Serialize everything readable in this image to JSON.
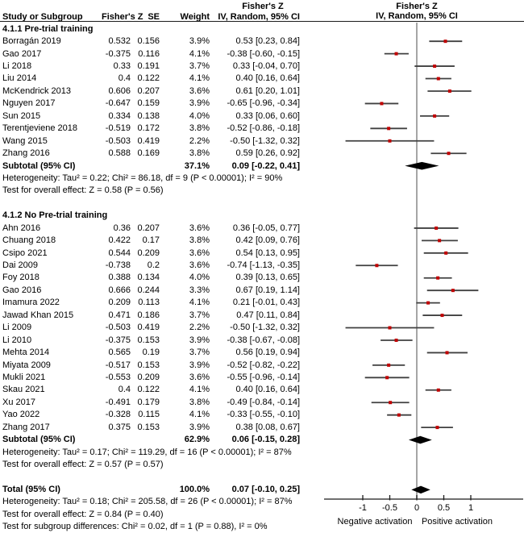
{
  "header": {
    "study_col": "Study or Subgroup",
    "fz_col": "Fisher's Z",
    "se_col": "SE",
    "weight_col": "Weight",
    "ci_col_top": "Fisher's Z",
    "ci_col_bottom": "IV, Random, 95% CI",
    "plot_col_top": "Fisher's Z",
    "plot_col_bottom": "IV, Random, 95% CI"
  },
  "axis": {
    "negative_label": "Negative activation",
    "positive_label": "Positive activation"
  },
  "colors": {
    "marker": "#c00000",
    "ci_line": "#404040",
    "diamond": "#000000",
    "zero_line": "#7f7f7f",
    "axis": "#1a1a1a"
  },
  "chart_data": {
    "type": "forest",
    "effect_measure": "Fisher's Z",
    "model": "IV, Random, 95% CI",
    "x_ticks": [
      -1,
      -0.5,
      0,
      0.5,
      1
    ],
    "x_tick_labels": [
      "-1",
      "-0.5",
      "0",
      "0.5",
      "1"
    ],
    "xlim": [
      -1.7,
      1.95
    ],
    "groups": [
      {
        "title": "4.1.1 Pre-trial training",
        "studies": [
          {
            "name": "Borragán 2019",
            "fz": "0.532",
            "se": "0.156",
            "weight": "3.9%",
            "ci": "0.53 [0.23, 0.84]",
            "est": 0.53,
            "lo": 0.23,
            "hi": 0.84
          },
          {
            "name": "Gao 2017",
            "fz": "-0.375",
            "se": "0.116",
            "weight": "4.1%",
            "ci": "-0.38 [-0.60, -0.15]",
            "est": -0.38,
            "lo": -0.6,
            "hi": -0.15
          },
          {
            "name": "Li 2018",
            "fz": "0.33",
            "se": "0.191",
            "weight": "3.7%",
            "ci": "0.33 [-0.04, 0.70]",
            "est": 0.33,
            "lo": -0.04,
            "hi": 0.7
          },
          {
            "name": "Liu 2014",
            "fz": "0.4",
            "se": "0.122",
            "weight": "4.1%",
            "ci": "0.40 [0.16, 0.64]",
            "est": 0.4,
            "lo": 0.16,
            "hi": 0.64
          },
          {
            "name": "McKendrick 2013",
            "fz": "0.606",
            "se": "0.207",
            "weight": "3.6%",
            "ci": "0.61 [0.20, 1.01]",
            "est": 0.61,
            "lo": 0.2,
            "hi": 1.01
          },
          {
            "name": "Nguyen 2017",
            "fz": "-0.647",
            "se": "0.159",
            "weight": "3.9%",
            "ci": "-0.65 [-0.96, -0.34]",
            "est": -0.65,
            "lo": -0.96,
            "hi": -0.34
          },
          {
            "name": "Sun 2015",
            "fz": "0.334",
            "se": "0.138",
            "weight": "4.0%",
            "ci": "0.33 [0.06, 0.60]",
            "est": 0.33,
            "lo": 0.06,
            "hi": 0.6
          },
          {
            "name": "Terentjeviene 2018",
            "fz": "-0.519",
            "se": "0.172",
            "weight": "3.8%",
            "ci": "-0.52 [-0.86, -0.18]",
            "est": -0.52,
            "lo": -0.86,
            "hi": -0.18
          },
          {
            "name": "Wang 2015",
            "fz": "-0.503",
            "se": "0.419",
            "weight": "2.2%",
            "ci": "-0.50 [-1.32, 0.32]",
            "est": -0.5,
            "lo": -1.32,
            "hi": 0.32
          },
          {
            "name": "Zhang 2016",
            "fz": "0.588",
            "se": "0.169",
            "weight": "3.8%",
            "ci": "0.59 [0.26, 0.92]",
            "est": 0.59,
            "lo": 0.26,
            "hi": 0.92
          }
        ],
        "subtotal": {
          "label": "Subtotal (95% CI)",
          "weight": "37.1%",
          "ci": "0.09 [-0.22, 0.41]",
          "est": 0.09,
          "lo": -0.22,
          "hi": 0.41
        },
        "heterogeneity": "Heterogeneity: Tau² = 0.22; Chi² = 86.18, df = 9 (P < 0.00001); I² = 90%",
        "overall_effect": "Test for overall effect: Z = 0.58 (P = 0.56)"
      },
      {
        "title": "4.1.2 No Pre-trial training",
        "studies": [
          {
            "name": "Ahn 2016",
            "fz": "0.36",
            "se": "0.207",
            "weight": "3.6%",
            "ci": "0.36 [-0.05, 0.77]",
            "est": 0.36,
            "lo": -0.05,
            "hi": 0.77
          },
          {
            "name": "Chuang 2018",
            "fz": "0.422",
            "se": "0.17",
            "weight": "3.8%",
            "ci": "0.42 [0.09, 0.76]",
            "est": 0.42,
            "lo": 0.09,
            "hi": 0.76
          },
          {
            "name": "Csipo 2021",
            "fz": "0.544",
            "se": "0.209",
            "weight": "3.6%",
            "ci": "0.54 [0.13, 0.95]",
            "est": 0.54,
            "lo": 0.13,
            "hi": 0.95
          },
          {
            "name": "Dai 2009",
            "fz": "-0.738",
            "se": "0.2",
            "weight": "3.6%",
            "ci": "-0.74 [-1.13, -0.35]",
            "est": -0.74,
            "lo": -1.13,
            "hi": -0.35
          },
          {
            "name": "Foy 2018",
            "fz": "0.388",
            "se": "0.134",
            "weight": "4.0%",
            "ci": "0.39 [0.13, 0.65]",
            "est": 0.39,
            "lo": 0.13,
            "hi": 0.65
          },
          {
            "name": "Gao 2016",
            "fz": "0.666",
            "se": "0.244",
            "weight": "3.3%",
            "ci": "0.67 [0.19, 1.14]",
            "est": 0.67,
            "lo": 0.19,
            "hi": 1.14
          },
          {
            "name": "Imamura 2022",
            "fz": "0.209",
            "se": "0.113",
            "weight": "4.1%",
            "ci": "0.21 [-0.01, 0.43]",
            "est": 0.21,
            "lo": -0.01,
            "hi": 0.43
          },
          {
            "name": "Jawad Khan 2015",
            "fz": "0.471",
            "se": "0.186",
            "weight": "3.7%",
            "ci": "0.47 [0.11, 0.84]",
            "est": 0.47,
            "lo": 0.11,
            "hi": 0.84
          },
          {
            "name": "Li 2009",
            "fz": "-0.503",
            "se": "0.419",
            "weight": "2.2%",
            "ci": "-0.50 [-1.32, 0.32]",
            "est": -0.5,
            "lo": -1.32,
            "hi": 0.32
          },
          {
            "name": "Li 2010",
            "fz": "-0.375",
            "se": "0.153",
            "weight": "3.9%",
            "ci": "-0.38 [-0.67, -0.08]",
            "est": -0.38,
            "lo": -0.67,
            "hi": -0.08
          },
          {
            "name": "Mehta 2014",
            "fz": "0.565",
            "se": "0.19",
            "weight": "3.7%",
            "ci": "0.56 [0.19, 0.94]",
            "est": 0.56,
            "lo": 0.19,
            "hi": 0.94
          },
          {
            "name": "Miyata 2009",
            "fz": "-0.517",
            "se": "0.153",
            "weight": "3.9%",
            "ci": "-0.52 [-0.82, -0.22]",
            "est": -0.52,
            "lo": -0.82,
            "hi": -0.22
          },
          {
            "name": "Mukli 2021",
            "fz": "-0.553",
            "se": "0.209",
            "weight": "3.6%",
            "ci": "-0.55 [-0.96, -0.14]",
            "est": -0.55,
            "lo": -0.96,
            "hi": -0.14
          },
          {
            "name": "Skau 2021",
            "fz": "0.4",
            "se": "0.122",
            "weight": "4.1%",
            "ci": "0.40 [0.16, 0.64]",
            "est": 0.4,
            "lo": 0.16,
            "hi": 0.64
          },
          {
            "name": "Xu 2017",
            "fz": "-0.491",
            "se": "0.179",
            "weight": "3.8%",
            "ci": "-0.49 [-0.84, -0.14]",
            "est": -0.49,
            "lo": -0.84,
            "hi": -0.14
          },
          {
            "name": "Yao 2022",
            "fz": "-0.328",
            "se": "0.115",
            "weight": "4.1%",
            "ci": "-0.33 [-0.55, -0.10]",
            "est": -0.33,
            "lo": -0.55,
            "hi": -0.1
          },
          {
            "name": "Zhang 2017",
            "fz": "0.375",
            "se": "0.153",
            "weight": "3.9%",
            "ci": "0.38 [0.08, 0.67]",
            "est": 0.38,
            "lo": 0.08,
            "hi": 0.67
          }
        ],
        "subtotal": {
          "label": "Subtotal (95% CI)",
          "weight": "62.9%",
          "ci": "0.06 [-0.15, 0.28]",
          "est": 0.06,
          "lo": -0.15,
          "hi": 0.28
        },
        "heterogeneity": "Heterogeneity: Tau² = 0.17; Chi² = 119.29, df = 16 (P < 0.00001); I² = 87%",
        "overall_effect": "Test for overall effect: Z = 0.57 (P = 0.57)"
      }
    ],
    "total": {
      "label": "Total (95% CI)",
      "weight": "100.0%",
      "ci": "0.07 [-0.10, 0.25]",
      "est": 0.07,
      "lo": -0.1,
      "hi": 0.25
    },
    "total_heterogeneity": "Heterogeneity: Tau² = 0.18; Chi² = 205.58, df = 26 (P < 0.00001); I² = 87%",
    "total_overall_effect": "Test for overall effect: Z = 0.84 (P = 0.40)",
    "subgroup_differences": "Test for subgroup differences: Chi² = 0.02, df = 1 (P = 0.88), I² = 0%"
  }
}
